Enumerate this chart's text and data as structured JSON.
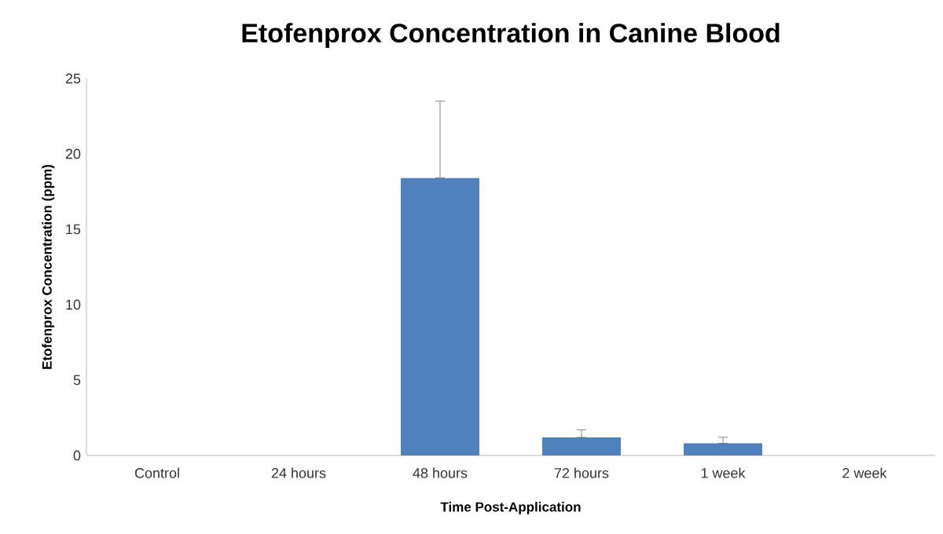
{
  "chart_data": {
    "type": "bar",
    "title": "Etofenprox Concentration in Canine Blood",
    "xlabel": "Time Post-Application",
    "ylabel": "Etofenprox Concentration (ppm)",
    "categories": [
      "Control",
      "24 hours",
      "48 hours",
      "72 hours",
      "1 week",
      "2 week"
    ],
    "values": [
      0,
      0,
      18.4,
      1.2,
      0.8,
      0
    ],
    "errors": [
      null,
      null,
      [
        18.4,
        23.5
      ],
      [
        1.2,
        1.7
      ],
      [
        0.8,
        1.2
      ],
      null
    ],
    "color": "#4f81bd",
    "ylim": [
      0,
      25
    ],
    "yticks": [
      0,
      5,
      10,
      15,
      20,
      25
    ]
  }
}
